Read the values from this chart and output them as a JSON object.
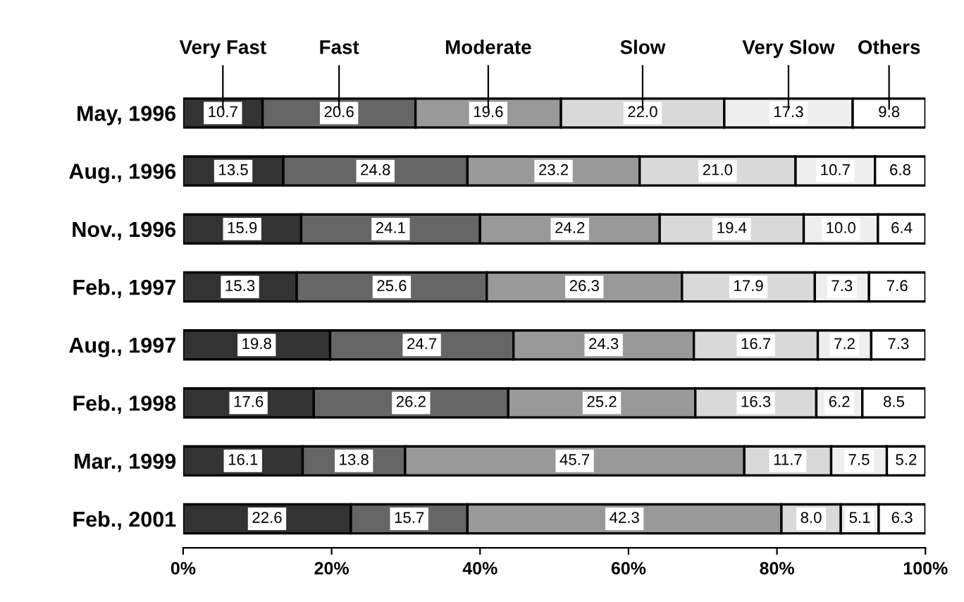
{
  "chart_data": {
    "type": "bar",
    "orientation": "horizontal",
    "stacked": true,
    "categories": [
      "May, 1996",
      "Aug., 1996",
      "Nov., 1996",
      "Feb., 1997",
      "Aug., 1997",
      "Feb., 1998",
      "Mar., 1999",
      "Feb., 2001"
    ],
    "series": [
      {
        "name": "Very Fast",
        "color": "#333333",
        "values": [
          10.7,
          13.5,
          15.9,
          15.3,
          19.8,
          17.6,
          16.1,
          22.6
        ],
        "value_labels": [
          "10.7",
          "13.5",
          "15.9",
          "15.3",
          "19.8",
          "17.6",
          "16.1",
          "22.6"
        ]
      },
      {
        "name": "Fast",
        "color": "#666666",
        "values": [
          20.6,
          24.8,
          24.1,
          25.6,
          24.7,
          26.2,
          13.8,
          15.7
        ],
        "value_labels": [
          "20.6",
          "24.8",
          "24.1",
          "25.6",
          "24.7",
          "26.2",
          "13.8",
          "15.7"
        ]
      },
      {
        "name": "Moderate",
        "color": "#999999",
        "values": [
          19.6,
          23.2,
          24.2,
          26.3,
          24.3,
          25.2,
          45.7,
          42.3
        ],
        "value_labels": [
          "19.6",
          "23.2",
          "24.2",
          "26.3",
          "24.3",
          "25.2",
          "45.7",
          "42.3"
        ]
      },
      {
        "name": "Slow",
        "color": "#d9d9d9",
        "values": [
          22.0,
          21.0,
          19.4,
          17.9,
          16.7,
          16.3,
          11.7,
          8.0
        ],
        "value_labels": [
          "22.0",
          "21.0",
          "19.4",
          "17.9",
          "16.7",
          "16.3",
          "11.7",
          "8.0"
        ]
      },
      {
        "name": "Very Slow",
        "color": "#eeeeee",
        "values": [
          17.3,
          10.7,
          10.0,
          7.3,
          7.2,
          6.2,
          7.5,
          5.1
        ],
        "value_labels": [
          "17.3",
          "10.7",
          "10.0",
          "7.3",
          "7.2",
          "6.2",
          "7.5",
          "5.1"
        ]
      },
      {
        "name": "Others",
        "color": "#ffffff",
        "values": [
          9.8,
          6.8,
          6.4,
          7.6,
          7.3,
          8.5,
          5.2,
          6.3
        ],
        "value_labels": [
          "9.8",
          "6.8",
          "6.4",
          "7.6",
          "7.3",
          "8.5",
          "5.2",
          "6.3"
        ]
      }
    ],
    "xlim": [
      0,
      100
    ],
    "xticks": [
      {
        "value": 0,
        "label": "0%"
      },
      {
        "value": 20,
        "label": "20%"
      },
      {
        "value": 40,
        "label": "40%"
      },
      {
        "value": 60,
        "label": "60%"
      },
      {
        "value": 80,
        "label": "80%"
      },
      {
        "value": 100,
        "label": "100%"
      }
    ],
    "grid": false,
    "legend": false
  }
}
